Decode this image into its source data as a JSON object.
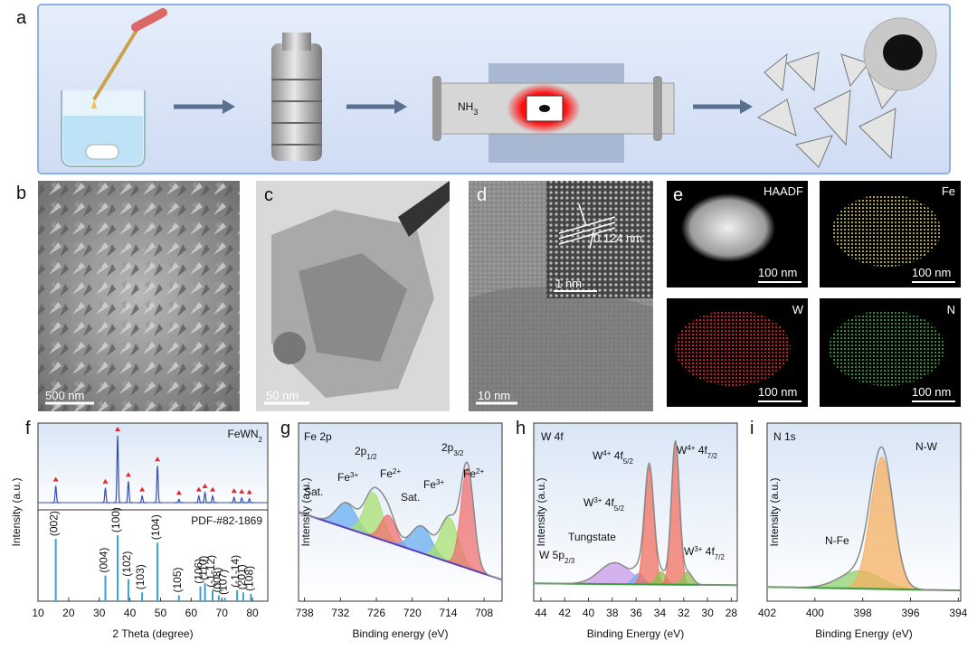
{
  "panel_a": {
    "letter": "a",
    "nh3": {
      "base": "NH",
      "sub": "3"
    }
  },
  "images": {
    "b": {
      "letter": "b",
      "scale": "500 nm"
    },
    "c": {
      "letter": "c",
      "scale": "50 nm"
    },
    "d": {
      "letter": "d",
      "scale": "10 nm",
      "inset_scale": "1 nm",
      "spacing": "0.124 nm"
    },
    "e": {
      "letter": "e",
      "maps": [
        {
          "label": "HAADF",
          "scale": "100 nm"
        },
        {
          "label": "Fe",
          "scale": "100 nm"
        },
        {
          "label": "W",
          "scale": "100 nm"
        },
        {
          "label": "N",
          "scale": "100 nm"
        }
      ]
    }
  },
  "chart_data": [
    {
      "type": "xrd",
      "letter": "f",
      "sample_label": {
        "base": "FeWN",
        "sub": "2"
      },
      "reference_label": "PDF-#82-1869",
      "xlabel": "2 Theta (degree)",
      "ylabel": "Intensity (a.u.)",
      "xlim": [
        10,
        85
      ],
      "xticks": [
        10,
        20,
        30,
        40,
        50,
        60,
        70,
        80
      ],
      "ylim": [
        0,
        100
      ],
      "pattern": {
        "color": "#3450b4",
        "marker_color": "#e02828",
        "x": [
          15.8,
          32,
          36,
          39.5,
          44,
          49,
          56,
          62.5,
          64.5,
          67,
          74,
          76.5,
          79
        ],
        "values": [
          25,
          22,
          100,
          32,
          10,
          55,
          5,
          10,
          15,
          10,
          8,
          7,
          6
        ]
      },
      "reference": {
        "color": "#3aa0d8",
        "x": [
          15.8,
          32,
          36,
          39.5,
          44,
          49,
          56,
          63,
          64.5,
          67,
          69,
          71,
          75,
          77,
          79.5
        ],
        "values": [
          85,
          35,
          90,
          30,
          12,
          80,
          8,
          20,
          25,
          15,
          8,
          5,
          15,
          12,
          10
        ],
        "labels": [
          "(002)",
          "(004)",
          "(100)",
          "(102)",
          "(103)",
          "(104)",
          "(105)",
          "(106)",
          "(110)",
          "(-1-12)",
          "(008)",
          "(107)",
          "(-1-14)",
          "(201)",
          "(108)"
        ]
      }
    },
    {
      "type": "xps",
      "letter": "g",
      "title": "Fe 2p",
      "xlabel": "Binding energy (eV)",
      "ylabel": "Intensity (a.u.)",
      "xlim": [
        739,
        705
      ],
      "xticks": [
        738,
        732,
        726,
        720,
        714,
        708
      ],
      "ylim": [
        0,
        100
      ],
      "envelope_color": "#8a8a8a",
      "background": {
        "x": [
          739,
          705
        ],
        "values": [
          50,
          12
        ],
        "color": "#5a3fc0"
      },
      "components": [
        {
          "center": 731,
          "height": 14,
          "fwhm": 4,
          "color": "#6aaef0"
        },
        {
          "center": 726.5,
          "height": 25,
          "fwhm": 3.5,
          "color": "#a8e070"
        },
        {
          "center": 724,
          "height": 15,
          "fwhm": 3,
          "color": "#f07070"
        },
        {
          "center": 718.5,
          "height": 15,
          "fwhm": 4,
          "color": "#6aaef0"
        },
        {
          "center": 713.8,
          "height": 25,
          "fwhm": 3.5,
          "color": "#a8e070"
        },
        {
          "center": 710.8,
          "height": 56,
          "fwhm": 2.5,
          "color": "#f07070"
        }
      ],
      "annotations": [
        {
          "base": "2p",
          "sub": "1/2"
        },
        {
          "base": "2p",
          "sub": "3/2"
        },
        "Sat.",
        {
          "base": "Fe",
          "sup": "3+"
        },
        {
          "base": "Fe",
          "sup": "2+"
        },
        "Sat.",
        {
          "base": "Fe",
          "sup": "3+"
        },
        {
          "base": "Fe",
          "sup": "2+"
        }
      ]
    },
    {
      "type": "xps",
      "letter": "h",
      "title": "W 4f",
      "xlabel": "Binding Energy (eV)",
      "ylabel": "Intensity (a.u.)",
      "xlim": [
        44.6,
        27.5
      ],
      "xticks": [
        44,
        42,
        40,
        38,
        36,
        34,
        32,
        30,
        28
      ],
      "ylim": [
        0,
        100
      ],
      "envelope_color": "#8a8a8a",
      "background": {
        "x": [
          44.6,
          27.5
        ],
        "values": [
          10,
          9
        ],
        "color": "#3c9a3c"
      },
      "components": [
        {
          "center": 37.8,
          "height": 12,
          "fwhm": 3,
          "color": "#c89ae8"
        },
        {
          "center": 35.8,
          "height": 6,
          "fwhm": 1,
          "color": "#70b0f0"
        },
        {
          "center": 34.9,
          "height": 66,
          "fwhm": 0.9,
          "color": "#f07060"
        },
        {
          "center": 33.9,
          "height": 7,
          "fwhm": 1,
          "color": "#90c050"
        },
        {
          "center": 32.7,
          "height": 80,
          "fwhm": 0.8,
          "color": "#f07060"
        },
        {
          "center": 31.7,
          "height": 7,
          "fwhm": 1,
          "color": "#90c050"
        }
      ],
      "annotations": [
        {
          "base": "W",
          "sup": "4+",
          "mid": " 4f",
          "sub": "5/2"
        },
        {
          "base": "W",
          "sup": "4+",
          "mid": " 4f",
          "sub": "7/2"
        },
        {
          "base": "W",
          "sup": "3+",
          "mid": " 4f",
          "sub": "5/2"
        },
        "Tungstate",
        {
          "base": "W 5p",
          "sub": "2/3"
        },
        {
          "base": "W",
          "sup": "3+",
          "mid": " 4f",
          "sub": "7/2"
        }
      ]
    },
    {
      "type": "xps",
      "letter": "i",
      "title": "N 1s",
      "xlabel": "Binding Energy (eV)",
      "ylabel": "Intensity (a.u.)",
      "xlim": [
        402,
        393.9
      ],
      "xticks": [
        402,
        400,
        398,
        396,
        394
      ],
      "ylim": [
        0,
        100
      ],
      "envelope_color": "#8a8a8a",
      "background": {
        "x": [
          402,
          393.9
        ],
        "values": [
          8,
          6
        ],
        "color": "#3c9a3c"
      },
      "components": [
        {
          "center": 398.1,
          "height": 10,
          "fwhm": 2,
          "color": "#90d070"
        },
        {
          "center": 397.2,
          "height": 74,
          "fwhm": 1.1,
          "color": "#f5b060"
        }
      ],
      "annotations": [
        "N-W",
        "N-Fe"
      ]
    }
  ]
}
